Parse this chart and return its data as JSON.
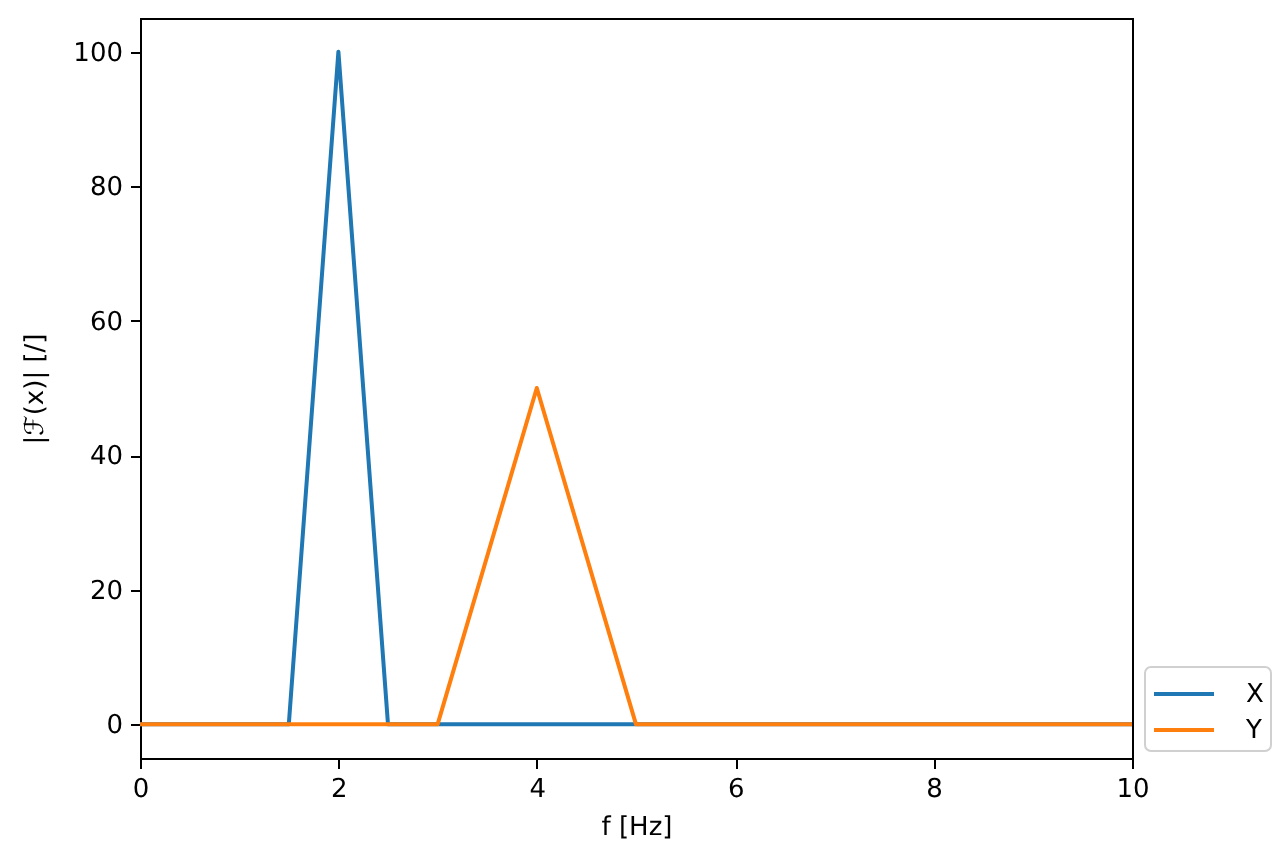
{
  "chart_data": {
    "type": "line",
    "xlabel": "f [Hz]",
    "ylabel": "|ℱ(x)| [/]",
    "series": [
      {
        "name": "X",
        "color": "#1f77b4",
        "x": [
          0,
          1.5,
          2,
          2.5,
          10
        ],
        "values": [
          0,
          0,
          100,
          0,
          0
        ]
      },
      {
        "name": "Y",
        "color": "#ff7f0e",
        "x": [
          0,
          3,
          4,
          5,
          10
        ],
        "values": [
          0,
          0,
          50,
          0,
          0
        ]
      }
    ],
    "xlim": [
      0,
      10
    ],
    "xticks": [
      0,
      2,
      4,
      6,
      8,
      10
    ],
    "ylim": [
      -5,
      105
    ],
    "yticks": [
      0,
      20,
      40,
      60,
      80,
      100
    ],
    "grid": false,
    "legend": "bottom right"
  }
}
